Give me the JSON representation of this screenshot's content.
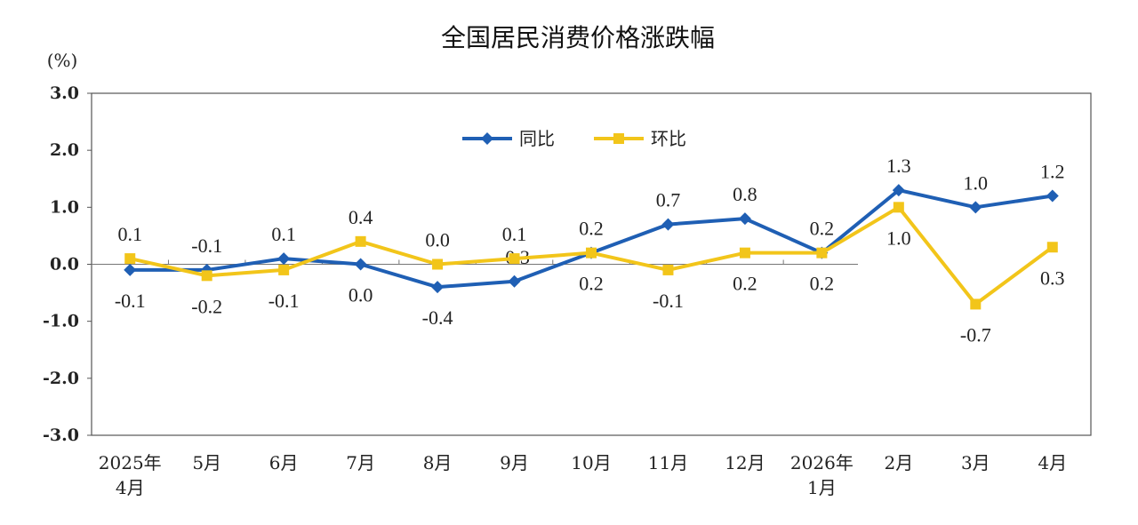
{
  "chart_data": {
    "type": "line",
    "title": "全国居民消费价格涨跌幅",
    "unit": "(%)",
    "categories": [
      [
        "2025年",
        "4月"
      ],
      [
        "5月"
      ],
      [
        "6月"
      ],
      [
        "7月"
      ],
      [
        "8月"
      ],
      [
        "9月"
      ],
      [
        "10月"
      ],
      [
        "11月"
      ],
      [
        "12月"
      ],
      [
        "2026年",
        "1月"
      ],
      [
        "2月"
      ],
      [
        "3月"
      ],
      [
        "4月"
      ]
    ],
    "ylim": [
      -3.0,
      3.0
    ],
    "yticks": [
      "3.0",
      "2.0",
      "1.0",
      "0.0",
      "-1.0",
      "-2.0",
      "-3.0"
    ],
    "legend_position": "top-center",
    "series": [
      {
        "name": "同比",
        "color": "#1f5fb4",
        "marker": "diamond",
        "values": [
          -0.1,
          -0.1,
          0.1,
          0.0,
          -0.4,
          -0.3,
          0.2,
          0.7,
          0.8,
          0.2,
          1.3,
          1.0,
          1.2
        ],
        "labels": [
          "-0.1",
          "-0.1",
          "0.1",
          "0.0",
          "-0.4",
          "-0.3",
          "0.2",
          "0.7",
          "0.8",
          "0.2",
          "1.3",
          "1.0",
          "1.2"
        ]
      },
      {
        "name": "环比",
        "color": "#f2c51a",
        "marker": "square",
        "values": [
          0.1,
          -0.2,
          -0.1,
          0.4,
          0.0,
          0.1,
          0.2,
          -0.1,
          0.2,
          0.2,
          1.0,
          -0.7,
          0.3
        ],
        "labels": [
          "0.1",
          "-0.2",
          "-0.1",
          "0.4",
          "0.0",
          "0.1",
          "0.2",
          "-0.1",
          "0.2",
          "0.2",
          "1.0",
          "-0.7",
          "0.3"
        ]
      }
    ]
  }
}
